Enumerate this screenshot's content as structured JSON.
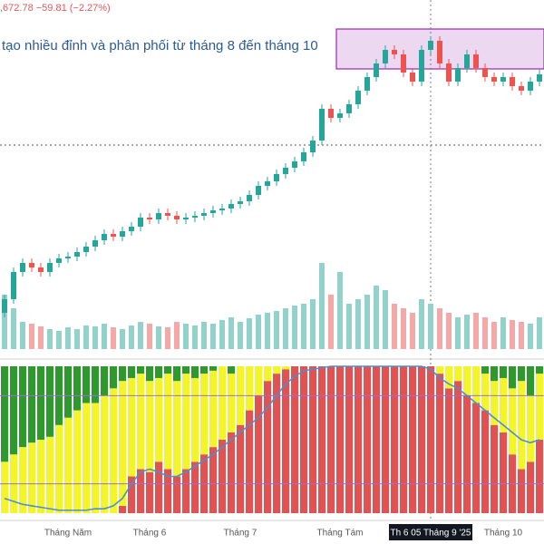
{
  "chart_data": [
    {
      "type": "candlestick",
      "header": ",672.78 −59.81 (−2.27%)",
      "annotation": "tạo nhiều đỉnh và phân phối từ tháng 8 đến tháng 10",
      "up_color": "#26a69a",
      "down_color": "#ef5350",
      "ylim": [
        1000,
        1720
      ],
      "open": [
        1030,
        1060,
        1120,
        1140,
        1130,
        1120,
        1140,
        1150,
        1154,
        1164,
        1176,
        1190,
        1204,
        1198,
        1210,
        1220,
        1240,
        1236,
        1250,
        1244,
        1236,
        1240,
        1244,
        1250,
        1256,
        1260,
        1270,
        1276,
        1290,
        1310,
        1320,
        1336,
        1350,
        1364,
        1384,
        1410,
        1480,
        1460,
        1470,
        1490,
        1520,
        1550,
        1580,
        1610,
        1600,
        1560,
        1540,
        1610,
        1630,
        1580,
        1540,
        1570,
        1600,
        1570,
        1550,
        1540,
        1550,
        1530,
        1520,
        1540
      ],
      "high": [
        1070,
        1130,
        1150,
        1150,
        1140,
        1150,
        1160,
        1164,
        1174,
        1186,
        1200,
        1214,
        1214,
        1220,
        1230,
        1250,
        1250,
        1260,
        1260,
        1254,
        1250,
        1254,
        1260,
        1266,
        1270,
        1280,
        1286,
        1300,
        1320,
        1330,
        1346,
        1360,
        1374,
        1394,
        1420,
        1490,
        1490,
        1480,
        1500,
        1530,
        1560,
        1590,
        1620,
        1620,
        1610,
        1570,
        1620,
        1640,
        1640,
        1590,
        1580,
        1610,
        1610,
        1580,
        1560,
        1560,
        1560,
        1540,
        1550,
        1566
      ],
      "low": [
        1020,
        1050,
        1110,
        1120,
        1110,
        1110,
        1130,
        1140,
        1144,
        1154,
        1166,
        1180,
        1188,
        1188,
        1200,
        1210,
        1226,
        1226,
        1234,
        1226,
        1226,
        1230,
        1234,
        1240,
        1246,
        1250,
        1260,
        1266,
        1280,
        1300,
        1310,
        1326,
        1340,
        1354,
        1374,
        1400,
        1450,
        1450,
        1460,
        1480,
        1510,
        1540,
        1570,
        1590,
        1550,
        1530,
        1530,
        1600,
        1570,
        1530,
        1530,
        1560,
        1560,
        1540,
        1530,
        1530,
        1520,
        1510,
        1510,
        1530
      ],
      "close": [
        1060,
        1120,
        1140,
        1130,
        1120,
        1140,
        1150,
        1154,
        1164,
        1176,
        1190,
        1204,
        1198,
        1210,
        1220,
        1240,
        1236,
        1250,
        1244,
        1236,
        1240,
        1244,
        1250,
        1256,
        1260,
        1270,
        1276,
        1290,
        1310,
        1320,
        1336,
        1350,
        1364,
        1384,
        1410,
        1480,
        1460,
        1470,
        1490,
        1520,
        1550,
        1580,
        1610,
        1600,
        1560,
        1540,
        1610,
        1630,
        1580,
        1540,
        1570,
        1600,
        1570,
        1550,
        1540,
        1550,
        1530,
        1520,
        1540,
        1556
      ],
      "zone": [
        1568,
        1656
      ],
      "zone_start": 37,
      "zone_color": "#9c27b0",
      "hline": 1400,
      "crosshair": 47,
      "volume": [
        60,
        45,
        30,
        28,
        25,
        22,
        20,
        24,
        22,
        26,
        25,
        28,
        24,
        22,
        26,
        30,
        28,
        25,
        24,
        30,
        28,
        26,
        30,
        28,
        32,
        35,
        30,
        34,
        38,
        40,
        42,
        45,
        48,
        50,
        55,
        95,
        60,
        85,
        50,
        55,
        60,
        70,
        65,
        50,
        45,
        40,
        55,
        50,
        45,
        40,
        35,
        38,
        40,
        35,
        30,
        35,
        32,
        30,
        28,
        35
      ],
      "x_labels": [
        {
          "index": 7,
          "label": "Tháng Năm"
        },
        {
          "index": 16,
          "label": "Tháng 6"
        },
        {
          "index": 26,
          "label": "Tháng 7"
        },
        {
          "index": 37,
          "label": "Tháng Tám"
        },
        {
          "index": 47,
          "label": "Th 6 05 Tháng 9 '25"
        },
        {
          "index": 55,
          "label": "Tháng 10"
        }
      ],
      "highlight_label": 4
    },
    {
      "type": "stacked_bar",
      "ylim": [
        0,
        100
      ],
      "levels": [
        20,
        80
      ],
      "series": [
        {
          "color": "#e25252",
          "values": [
            0,
            0,
            0,
            0,
            0,
            0,
            0,
            0,
            0,
            0,
            0,
            0,
            0,
            5,
            25,
            30,
            28,
            35,
            30,
            25,
            30,
            35,
            40,
            45,
            50,
            55,
            60,
            70,
            80,
            90,
            95,
            98,
            100,
            100,
            100,
            100,
            100,
            100,
            100,
            100,
            100,
            100,
            100,
            100,
            100,
            100,
            100,
            100,
            95,
            85,
            90,
            80,
            75,
            70,
            60,
            55,
            40,
            30,
            35,
            50
          ]
        },
        {
          "color": "#f4f42a",
          "values": [
            35,
            40,
            45,
            48,
            50,
            52,
            60,
            65,
            70,
            75,
            75,
            80,
            85,
            85,
            67,
            65,
            62,
            57,
            65,
            65,
            65,
            57,
            55,
            52,
            50,
            40,
            40,
            30,
            20,
            10,
            5,
            2,
            0,
            0,
            0,
            0,
            0,
            0,
            0,
            0,
            0,
            0,
            0,
            0,
            0,
            0,
            0,
            0,
            5,
            15,
            10,
            20,
            25,
            25,
            30,
            37,
            45,
            60,
            45,
            45
          ]
        },
        {
          "color": "#2e9a2e",
          "values": [
            65,
            60,
            55,
            52,
            50,
            48,
            40,
            35,
            30,
            25,
            25,
            20,
            15,
            10,
            8,
            5,
            10,
            8,
            5,
            10,
            5,
            8,
            5,
            3,
            0,
            5,
            0,
            0,
            0,
            0,
            0,
            0,
            0,
            0,
            0,
            0,
            0,
            0,
            0,
            0,
            0,
            0,
            0,
            0,
            0,
            0,
            0,
            0,
            0,
            0,
            0,
            0,
            0,
            5,
            10,
            8,
            15,
            10,
            20,
            5
          ]
        }
      ],
      "line": {
        "color": "#4a8fd0",
        "values": [
          10,
          8,
          6,
          5,
          4,
          3,
          2,
          2,
          2,
          2,
          3,
          3,
          5,
          10,
          20,
          28,
          30,
          28,
          25,
          25,
          28,
          32,
          36,
          40,
          45,
          50,
          55,
          60,
          65,
          72,
          80,
          88,
          93,
          97,
          98,
          99,
          100,
          100,
          100,
          100,
          100,
          100,
          100,
          100,
          100,
          100,
          100,
          98,
          92,
          88,
          85,
          80,
          75,
          70,
          65,
          60,
          55,
          50,
          48,
          50
        ]
      }
    }
  ]
}
